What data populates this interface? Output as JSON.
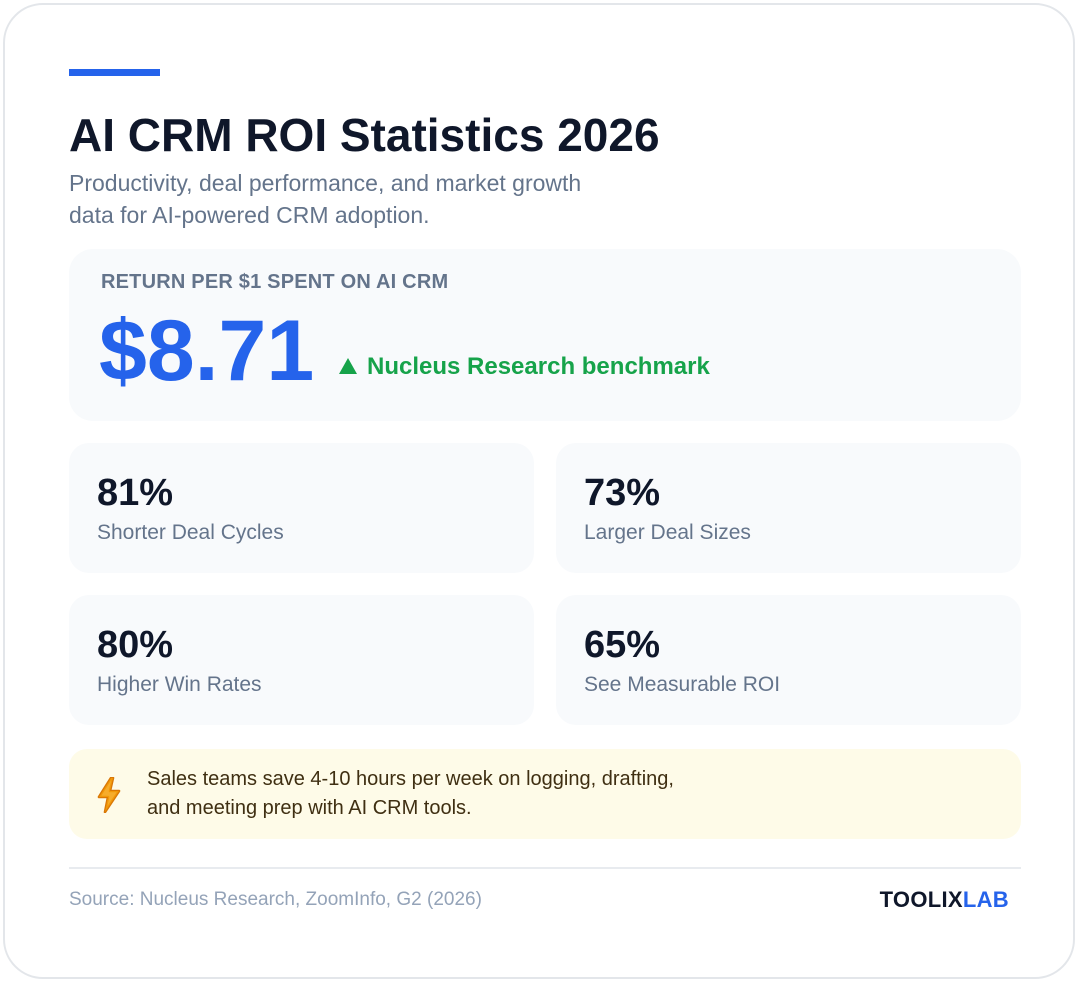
{
  "header": {
    "title": "AI CRM ROI Statistics 2026",
    "subtitle": "Productivity, deal performance, and market growth data for AI-powered CRM adoption."
  },
  "hero": {
    "label": "RETURN PER $1 SPENT ON AI CRM",
    "value": "$8.71",
    "note": "Nucleus Research benchmark",
    "note_icon": "triangle-up-icon"
  },
  "stats": [
    {
      "value": "81%",
      "label": "Shorter Deal Cycles"
    },
    {
      "value": "73%",
      "label": "Larger Deal Sizes"
    },
    {
      "value": "80%",
      "label": "Higher Win Rates"
    },
    {
      "value": "65%",
      "label": "See Measurable ROI"
    }
  ],
  "callout": {
    "icon": "lightning-bolt-icon",
    "text": "Sales teams save 4-10 hours per week on logging, drafting, and meeting prep with AI CRM tools."
  },
  "footer": {
    "source": "Source: Nucleus Research, ZoomInfo, G2 (2026)",
    "brand_part1": "TOOLIX",
    "brand_part2": "LAB"
  },
  "colors": {
    "accent": "#2563eb",
    "positive": "#16a34a",
    "heading": "#0f172a",
    "muted": "#64748b",
    "callout_bg": "#fefbe8",
    "bolt": "#d97706"
  }
}
